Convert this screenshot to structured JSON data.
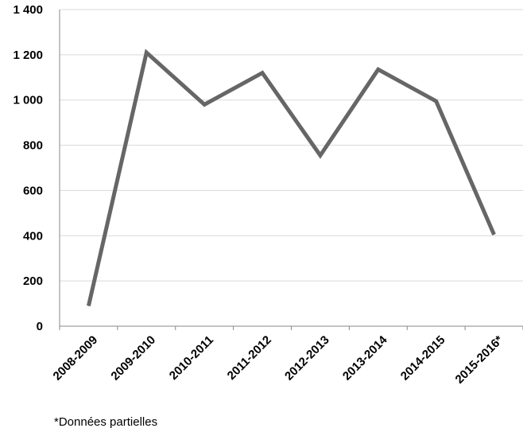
{
  "chart_data": {
    "type": "line",
    "categories": [
      "2008-2009",
      "2009-2010",
      "2010-2011",
      "2011-2012",
      "2012-2013",
      "2013-2014",
      "2014-2015",
      "2015-2016*"
    ],
    "series": [
      {
        "values": [
          90,
          1210,
          980,
          1120,
          755,
          1135,
          995,
          405
        ]
      }
    ],
    "yticks": [
      "0",
      "200",
      "400",
      "600",
      "800",
      "1 000",
      "1 200",
      "1 400"
    ],
    "ylim": [
      0,
      1400
    ],
    "grid": true,
    "legend": "none",
    "line_color": "#666666",
    "grid_color": "#d9d9d9",
    "note": "*Données partielles"
  }
}
